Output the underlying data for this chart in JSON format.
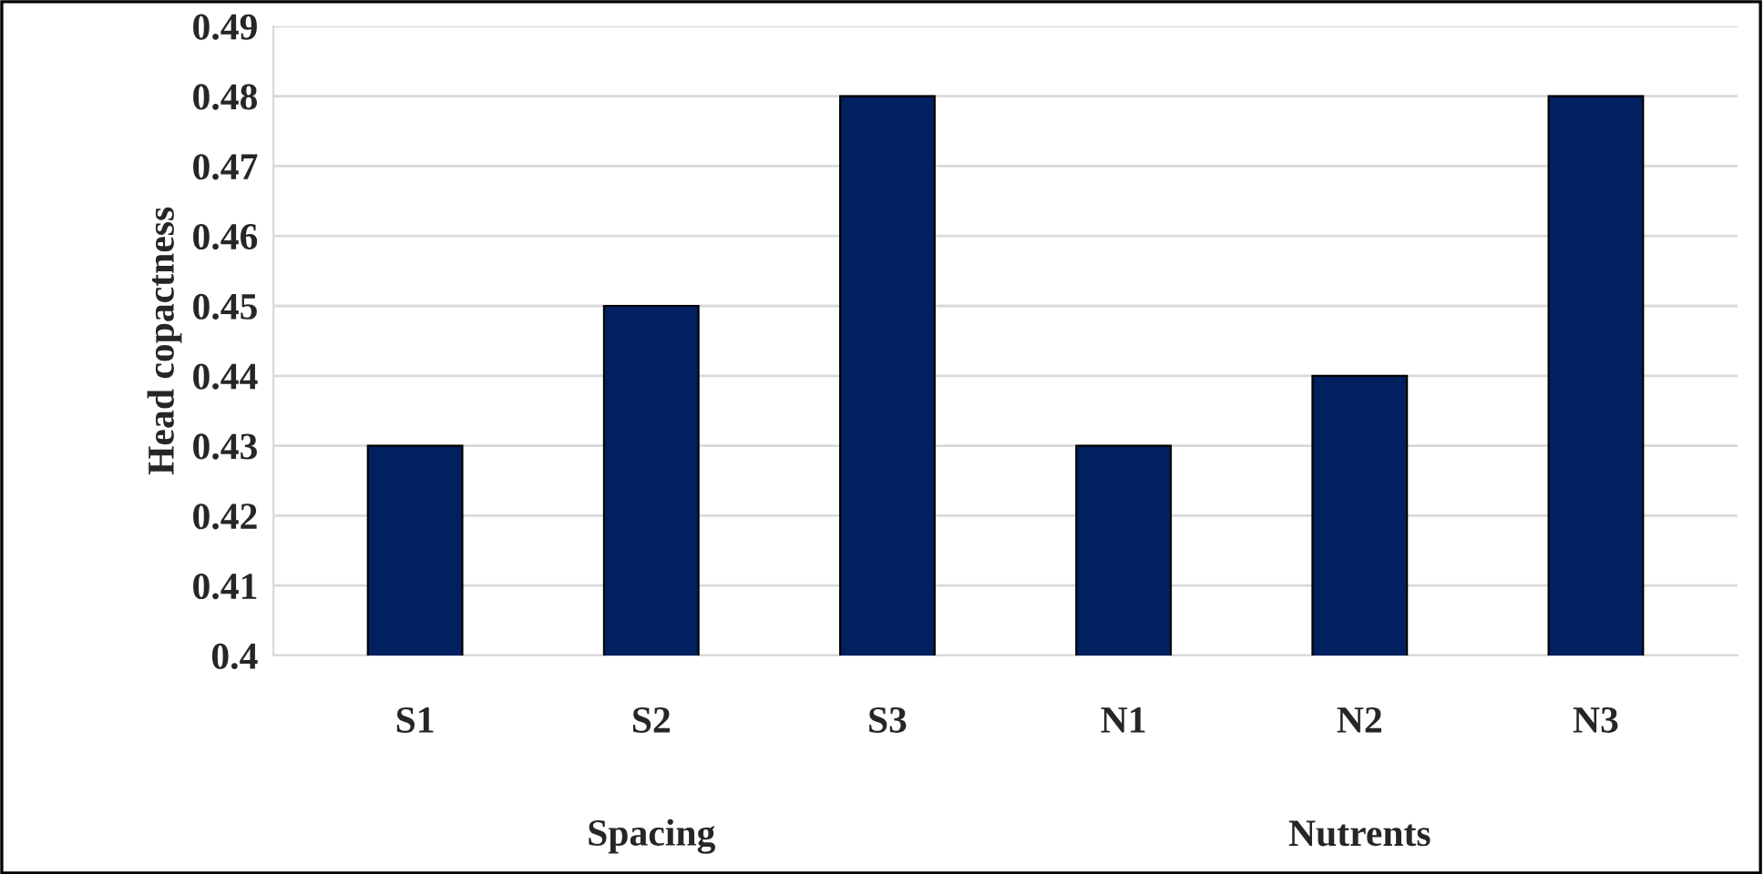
{
  "chart_data": {
    "type": "bar",
    "ylabel": "Head copactness",
    "categories": [
      "S1",
      "S2",
      "S3",
      "N1",
      "N2",
      "N3"
    ],
    "values": [
      0.43,
      0.45,
      0.48,
      0.43,
      0.44,
      0.48
    ],
    "color": "#002060",
    "ylim": [
      0.4,
      0.49
    ],
    "yticks": [
      0.4,
      0.41,
      0.42,
      0.43,
      0.44,
      0.45,
      0.46,
      0.47,
      0.48,
      0.49
    ],
    "grid": "y",
    "annotations": [
      "Spacing",
      "Nutrents"
    ]
  }
}
